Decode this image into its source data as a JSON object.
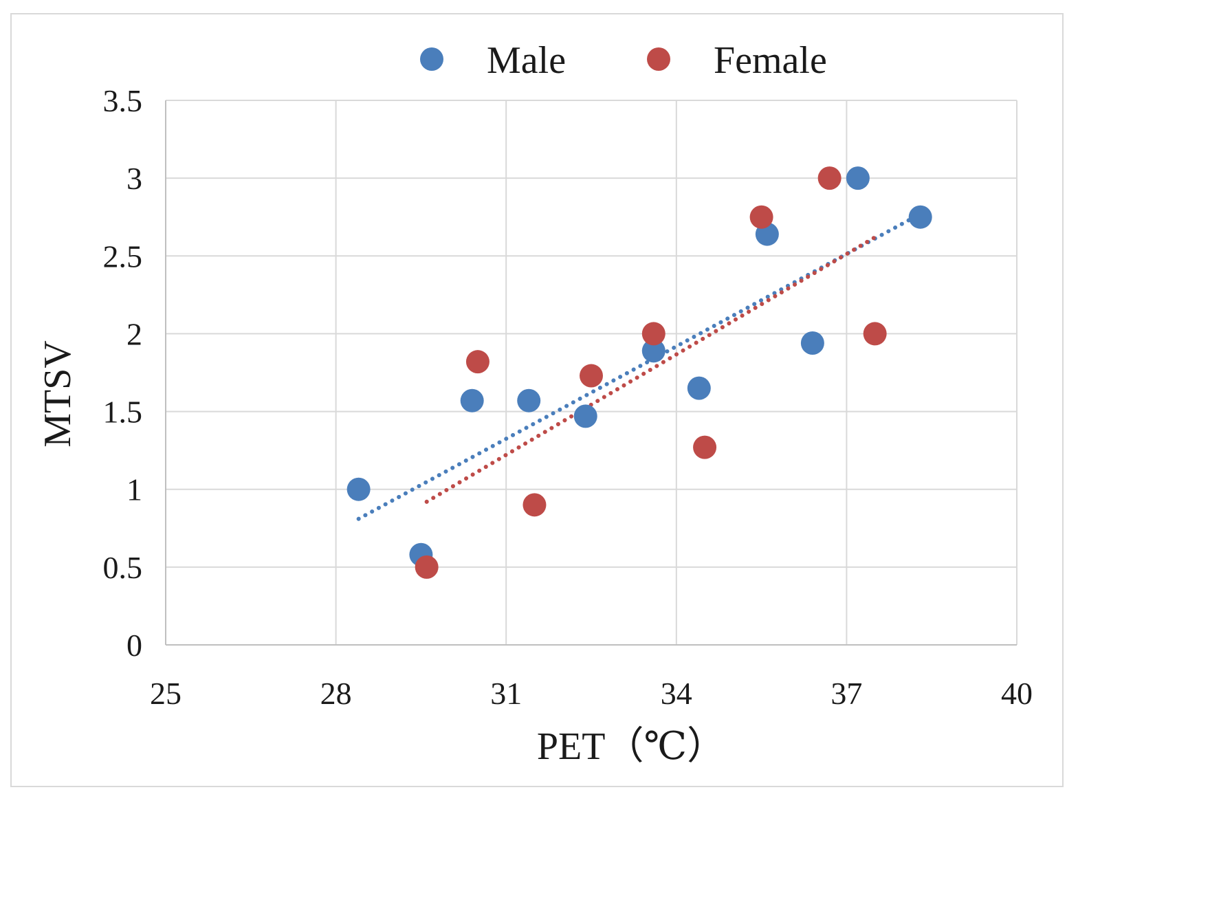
{
  "chart_data": {
    "type": "scatter",
    "title": "",
    "xlabel": "PET（℃）",
    "ylabel": "MTSV",
    "xlim": [
      25,
      40
    ],
    "ylim": [
      0,
      3.5
    ],
    "xticks": [
      25,
      28,
      31,
      34,
      37,
      40
    ],
    "xtick_labels": [
      "25",
      "28",
      "31",
      "34",
      "37",
      "40"
    ],
    "yticks": [
      0,
      0.5,
      1,
      1.5,
      2,
      2.5,
      3,
      3.5
    ],
    "ytick_labels": [
      "0",
      "0.5",
      "1",
      "1.5",
      "2",
      "2.5",
      "3",
      "3.5"
    ],
    "grid": true,
    "legend_position": "top",
    "series": [
      {
        "name": "Male",
        "color": "#4a7ebb",
        "points": [
          [
            28.4,
            1.0
          ],
          [
            29.5,
            0.58
          ],
          [
            30.4,
            1.57
          ],
          [
            31.4,
            1.57
          ],
          [
            32.4,
            1.47
          ],
          [
            33.6,
            1.89
          ],
          [
            34.4,
            1.65
          ],
          [
            35.6,
            2.64
          ],
          [
            36.4,
            1.94
          ],
          [
            37.2,
            3.0
          ],
          [
            38.3,
            2.75
          ]
        ],
        "trendline": {
          "type": "linear",
          "style": "dotted",
          "x": [
            28.4,
            38.3
          ],
          "y": [
            0.81,
            2.77
          ]
        }
      },
      {
        "name": "Female",
        "color": "#be4b48",
        "points": [
          [
            29.6,
            0.5
          ],
          [
            30.5,
            1.82
          ],
          [
            31.5,
            0.9
          ],
          [
            32.5,
            1.73
          ],
          [
            33.6,
            2.0
          ],
          [
            34.5,
            1.27
          ],
          [
            35.5,
            2.75
          ],
          [
            36.7,
            3.0
          ],
          [
            37.5,
            2.0
          ]
        ],
        "trendline": {
          "type": "linear",
          "style": "dotted",
          "x": [
            29.6,
            37.5
          ],
          "y": [
            0.92,
            2.62
          ]
        }
      }
    ]
  }
}
